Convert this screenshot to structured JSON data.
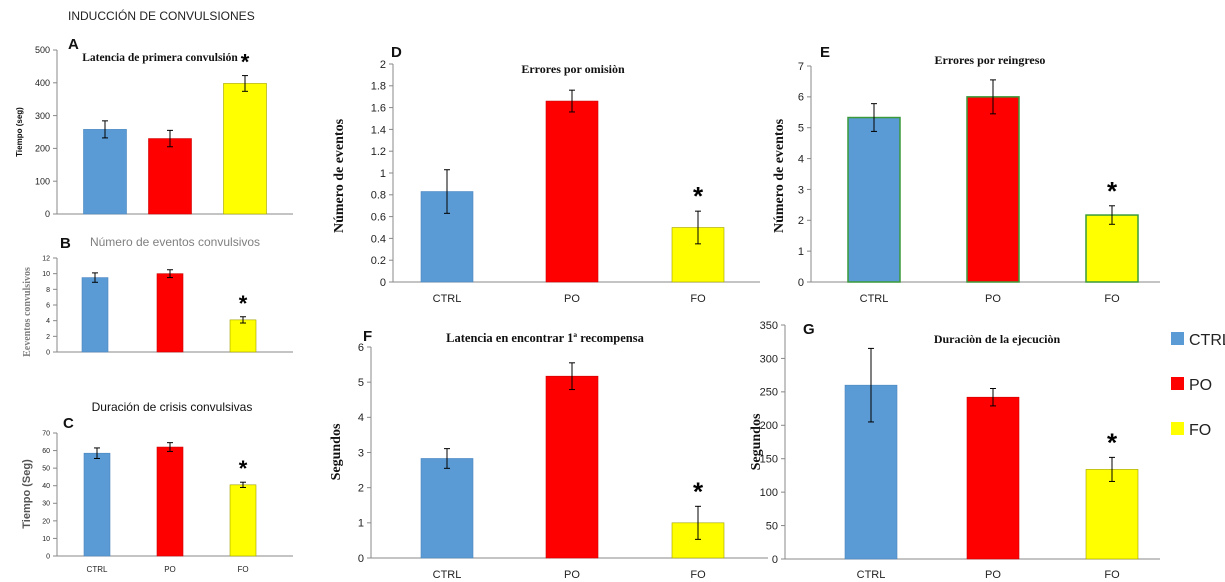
{
  "figure_title": "INDUCCIÓN DE CONVULSIONES",
  "legend": {
    "items": [
      {
        "label": "CTRL",
        "color": "#5b9bd5"
      },
      {
        "label": "PO",
        "color": "#ff0000"
      },
      {
        "label": "FO",
        "color": "#ffff00"
      }
    ]
  },
  "colors": {
    "CTRL": "#5b9bd5",
    "PO": "#ff0000",
    "FO": "#ffff00",
    "green_edge": "#3a9a3a"
  },
  "chart_data": [
    {
      "panel": "A",
      "type": "bar",
      "title": "Latencia de primera convulsión",
      "ylabel": "Tiempo (seg)",
      "xlabel": "",
      "categories": [
        "CTRL",
        "PO",
        "FO"
      ],
      "show_categories": false,
      "values": [
        258,
        230,
        398
      ],
      "errors": [
        26,
        25,
        24
      ],
      "ylim": [
        0,
        500
      ],
      "yticks": [
        0,
        100,
        200,
        300,
        400,
        500
      ],
      "significance": [
        "",
        "",
        "*"
      ]
    },
    {
      "panel": "B",
      "type": "bar",
      "title": "Número de eventos convulsivos",
      "ylabel": "Eeventos convulsivos",
      "xlabel": "",
      "categories": [
        "CTRL",
        "PO",
        "FO"
      ],
      "show_categories": false,
      "values": [
        9.5,
        10,
        4.1
      ],
      "errors": [
        0.6,
        0.5,
        0.4
      ],
      "ylim": [
        0,
        12
      ],
      "yticks": [
        0,
        2,
        4,
        6,
        8,
        10,
        12
      ],
      "significance": [
        "",
        "",
        "*"
      ]
    },
    {
      "panel": "C",
      "type": "bar",
      "title": "Duración de crisis convulsivas",
      "ylabel": "Tiempo (Seg)",
      "xlabel": "",
      "categories": [
        "CTRL",
        "PO",
        "FO"
      ],
      "show_categories": true,
      "values": [
        58.5,
        62,
        40.5
      ],
      "errors": [
        3,
        2.5,
        1.5
      ],
      "ylim": [
        0,
        70
      ],
      "yticks": [
        0,
        10,
        20,
        30,
        40,
        50,
        60,
        70
      ],
      "significance": [
        "",
        "",
        "*"
      ]
    },
    {
      "panel": "D",
      "type": "bar",
      "title": "Errores por omisiòn",
      "ylabel": "Número de eventos",
      "xlabel": "",
      "categories": [
        "CTRL",
        "PO",
        "FO"
      ],
      "show_categories": true,
      "values": [
        0.83,
        1.66,
        0.5
      ],
      "errors": [
        0.2,
        0.1,
        0.15
      ],
      "ylim": [
        0,
        2
      ],
      "yticks": [
        0,
        0.2,
        0.4,
        0.6,
        0.8,
        1,
        1.2,
        1.4,
        1.6,
        1.8,
        2
      ],
      "significance": [
        "",
        "",
        "*"
      ]
    },
    {
      "panel": "E",
      "type": "bar",
      "title": "Errores por reingreso",
      "ylabel": "Número de eventos",
      "xlabel": "",
      "categories": [
        "CTRL",
        "PO",
        "FO"
      ],
      "show_categories": true,
      "values": [
        5.33,
        6,
        2.17
      ],
      "errors": [
        0.45,
        0.55,
        0.3
      ],
      "ylim": [
        0,
        7
      ],
      "yticks": [
        0,
        1,
        2,
        3,
        4,
        5,
        6,
        7
      ],
      "significance": [
        "",
        "",
        "*"
      ]
    },
    {
      "panel": "F",
      "type": "bar",
      "title": "Latencia en encontrar 1ª recompensa",
      "ylabel": "Segundos",
      "xlabel": "",
      "categories": [
        "CTRL",
        "PO",
        "FO"
      ],
      "show_categories": true,
      "values": [
        2.83,
        5.17,
        1.0
      ],
      "errors": [
        0.28,
        0.38,
        0.47
      ],
      "ylim": [
        0,
        6
      ],
      "yticks": [
        0,
        1,
        2,
        3,
        4,
        5,
        6
      ],
      "significance": [
        "",
        "",
        "*"
      ]
    },
    {
      "panel": "G",
      "type": "bar",
      "title": "Duraciòn de la ejecuciòn",
      "ylabel": "Segundos",
      "xlabel": "",
      "categories": [
        "CTRL",
        "PO",
        "FO"
      ],
      "show_categories": true,
      "values": [
        260,
        242,
        134
      ],
      "errors": [
        55,
        13,
        18
      ],
      "ylim": [
        0,
        350
      ],
      "yticks": [
        0,
        50,
        100,
        150,
        200,
        250,
        300,
        350
      ],
      "significance": [
        "",
        "",
        "*"
      ]
    }
  ]
}
